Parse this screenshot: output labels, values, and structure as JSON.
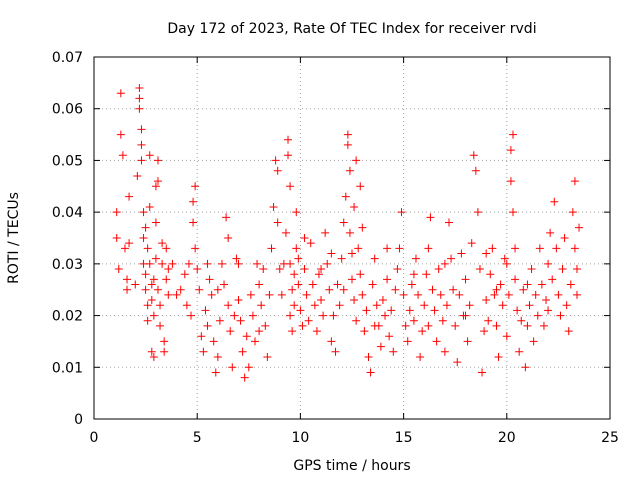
{
  "chart_data": {
    "type": "scatter",
    "title": "Day 172 of 2023, Rate Of TEC Index for receiver rvdi",
    "xlabel": "GPS time / hours",
    "ylabel": "ROTI / TECUs",
    "xlim": [
      0,
      25
    ],
    "ylim": [
      0,
      0.07
    ],
    "xticks": [
      0,
      5,
      10,
      15,
      20,
      25
    ],
    "xtick_labels": [
      "0",
      "5",
      "10",
      "15",
      "20",
      "25"
    ],
    "yticks": [
      0,
      0.01,
      0.02,
      0.03,
      0.04,
      0.05,
      0.06,
      0.07
    ],
    "ytick_labels": [
      "0",
      "0.01",
      "0.02",
      "0.03",
      "0.04",
      "0.05",
      "0.06",
      "0.07"
    ],
    "grid": true,
    "marker": "plus",
    "color": "#ff0000",
    "series": [
      {
        "name": "ROTI",
        "points": [
          [
            1.1,
            0.04
          ],
          [
            1.1,
            0.035
          ],
          [
            1.2,
            0.029
          ],
          [
            1.3,
            0.063
          ],
          [
            1.3,
            0.055
          ],
          [
            1.4,
            0.051
          ],
          [
            1.5,
            0.033
          ],
          [
            1.6,
            0.025
          ],
          [
            1.7,
            0.043
          ],
          [
            1.7,
            0.034
          ],
          [
            2.1,
            0.047
          ],
          [
            2.2,
            0.064
          ],
          [
            2.2,
            0.062
          ],
          [
            2.2,
            0.06
          ],
          [
            2.3,
            0.056
          ],
          [
            2.3,
            0.053
          ],
          [
            2.3,
            0.05
          ],
          [
            2.4,
            0.04
          ],
          [
            2.4,
            0.035
          ],
          [
            2.4,
            0.03
          ],
          [
            2.5,
            0.028
          ],
          [
            2.5,
            0.025
          ],
          [
            2.6,
            0.022
          ],
          [
            2.6,
            0.019
          ],
          [
            2.6,
            0.033
          ],
          [
            2.7,
            0.051
          ],
          [
            2.7,
            0.041
          ],
          [
            2.7,
            0.03
          ],
          [
            2.8,
            0.026
          ],
          [
            2.8,
            0.023
          ],
          [
            2.8,
            0.013
          ],
          [
            2.9,
            0.012
          ],
          [
            2.9,
            0.02
          ],
          [
            2.9,
            0.027
          ],
          [
            3.0,
            0.031
          ],
          [
            3.0,
            0.038
          ],
          [
            3.0,
            0.045
          ],
          [
            3.1,
            0.05
          ],
          [
            3.1,
            0.046
          ],
          [
            3.1,
            0.025
          ],
          [
            3.2,
            0.022
          ],
          [
            3.2,
            0.018
          ],
          [
            3.3,
            0.03
          ],
          [
            3.3,
            0.034
          ],
          [
            3.4,
            0.015
          ],
          [
            3.4,
            0.013
          ],
          [
            3.5,
            0.027
          ],
          [
            3.5,
            0.033
          ],
          [
            3.6,
            0.029
          ],
          [
            3.6,
            0.024
          ],
          [
            4.0,
            0.024
          ],
          [
            4.2,
            0.025
          ],
          [
            4.4,
            0.028
          ],
          [
            4.6,
            0.03
          ],
          [
            4.7,
            0.02
          ],
          [
            4.8,
            0.038
          ],
          [
            4.8,
            0.042
          ],
          [
            4.9,
            0.045
          ],
          [
            4.9,
            0.033
          ],
          [
            5.0,
            0.029
          ],
          [
            5.1,
            0.025
          ],
          [
            5.2,
            0.016
          ],
          [
            5.3,
            0.013
          ],
          [
            5.4,
            0.021
          ],
          [
            5.5,
            0.018
          ],
          [
            5.6,
            0.027
          ],
          [
            5.7,
            0.024
          ],
          [
            5.8,
            0.015
          ],
          [
            5.9,
            0.009
          ],
          [
            6.0,
            0.012
          ],
          [
            6.1,
            0.019
          ],
          [
            6.2,
            0.03
          ],
          [
            6.3,
            0.026
          ],
          [
            6.4,
            0.039
          ],
          [
            6.5,
            0.035
          ],
          [
            6.5,
            0.022
          ],
          [
            6.6,
            0.017
          ],
          [
            6.7,
            0.01
          ],
          [
            6.8,
            0.02
          ],
          [
            6.9,
            0.031
          ],
          [
            7.0,
            0.023
          ],
          [
            7.1,
            0.019
          ],
          [
            7.2,
            0.013
          ],
          [
            7.3,
            0.008
          ],
          [
            7.4,
            0.016
          ],
          [
            7.5,
            0.01
          ],
          [
            7.6,
            0.024
          ],
          [
            7.7,
            0.02
          ],
          [
            7.8,
            0.015
          ],
          [
            7.9,
            0.03
          ],
          [
            8.0,
            0.026
          ],
          [
            8.1,
            0.022
          ],
          [
            8.2,
            0.029
          ],
          [
            8.3,
            0.018
          ],
          [
            8.4,
            0.012
          ],
          [
            8.5,
            0.024
          ],
          [
            8.6,
            0.033
          ],
          [
            8.7,
            0.041
          ],
          [
            8.8,
            0.05
          ],
          [
            8.9,
            0.048
          ],
          [
            8.9,
            0.038
          ],
          [
            9.0,
            0.029
          ],
          [
            9.1,
            0.024
          ],
          [
            9.2,
            0.03
          ],
          [
            9.3,
            0.036
          ],
          [
            9.4,
            0.054
          ],
          [
            9.4,
            0.051
          ],
          [
            9.5,
            0.045
          ],
          [
            9.5,
            0.03
          ],
          [
            9.6,
            0.025
          ],
          [
            9.6,
            0.017
          ],
          [
            9.7,
            0.022
          ],
          [
            9.7,
            0.028
          ],
          [
            9.8,
            0.033
          ],
          [
            9.8,
            0.04
          ],
          [
            9.9,
            0.031
          ],
          [
            9.9,
            0.026
          ],
          [
            10.0,
            0.021
          ],
          [
            10.1,
            0.018
          ],
          [
            10.2,
            0.029
          ],
          [
            10.3,
            0.024
          ],
          [
            10.4,
            0.019
          ],
          [
            10.5,
            0.034
          ],
          [
            10.6,
            0.026
          ],
          [
            10.7,
            0.022
          ],
          [
            10.8,
            0.017
          ],
          [
            10.9,
            0.028
          ],
          [
            11.0,
            0.023
          ],
          [
            11.1,
            0.02
          ],
          [
            11.2,
            0.036
          ],
          [
            11.3,
            0.03
          ],
          [
            11.4,
            0.025
          ],
          [
            11.5,
            0.015
          ],
          [
            11.6,
            0.02
          ],
          [
            11.7,
            0.013
          ],
          [
            11.8,
            0.026
          ],
          [
            11.9,
            0.022
          ],
          [
            12.0,
            0.031
          ],
          [
            12.1,
            0.038
          ],
          [
            12.2,
            0.043
          ],
          [
            12.3,
            0.055
          ],
          [
            12.3,
            0.053
          ],
          [
            12.4,
            0.048
          ],
          [
            12.4,
            0.036
          ],
          [
            12.5,
            0.032
          ],
          [
            12.5,
            0.027
          ],
          [
            12.6,
            0.041
          ],
          [
            12.6,
            0.023
          ],
          [
            12.7,
            0.05
          ],
          [
            12.7,
            0.019
          ],
          [
            12.8,
            0.033
          ],
          [
            12.9,
            0.028
          ],
          [
            13.0,
            0.024
          ],
          [
            13.1,
            0.017
          ],
          [
            13.2,
            0.021
          ],
          [
            13.3,
            0.012
          ],
          [
            13.4,
            0.009
          ],
          [
            13.5,
            0.026
          ],
          [
            13.6,
            0.031
          ],
          [
            13.7,
            0.022
          ],
          [
            13.8,
            0.018
          ],
          [
            13.9,
            0.014
          ],
          [
            14.0,
            0.023
          ],
          [
            14.1,
            0.02
          ],
          [
            14.2,
            0.027
          ],
          [
            14.3,
            0.016
          ],
          [
            14.4,
            0.021
          ],
          [
            14.5,
            0.013
          ],
          [
            14.6,
            0.025
          ],
          [
            14.7,
            0.029
          ],
          [
            14.8,
            0.033
          ],
          [
            14.9,
            0.04
          ],
          [
            15.0,
            0.024
          ],
          [
            15.1,
            0.018
          ],
          [
            15.2,
            0.015
          ],
          [
            15.3,
            0.021
          ],
          [
            15.4,
            0.026
          ],
          [
            15.5,
            0.019
          ],
          [
            15.6,
            0.031
          ],
          [
            15.7,
            0.024
          ],
          [
            15.8,
            0.012
          ],
          [
            15.9,
            0.017
          ],
          [
            16.0,
            0.022
          ],
          [
            16.1,
            0.028
          ],
          [
            16.2,
            0.033
          ],
          [
            16.3,
            0.039
          ],
          [
            16.4,
            0.025
          ],
          [
            16.5,
            0.021
          ],
          [
            16.6,
            0.015
          ],
          [
            16.7,
            0.029
          ],
          [
            16.8,
            0.024
          ],
          [
            16.9,
            0.019
          ],
          [
            17.0,
            0.013
          ],
          [
            17.1,
            0.022
          ],
          [
            17.2,
            0.038
          ],
          [
            17.3,
            0.031
          ],
          [
            17.4,
            0.025
          ],
          [
            17.5,
            0.018
          ],
          [
            17.6,
            0.011
          ],
          [
            17.7,
            0.024
          ],
          [
            17.8,
            0.032
          ],
          [
            17.9,
            0.02
          ],
          [
            18.0,
            0.027
          ],
          [
            18.1,
            0.015
          ],
          [
            18.2,
            0.022
          ],
          [
            18.3,
            0.034
          ],
          [
            18.4,
            0.051
          ],
          [
            18.5,
            0.048
          ],
          [
            18.6,
            0.04
          ],
          [
            18.7,
            0.029
          ],
          [
            18.8,
            0.009
          ],
          [
            18.9,
            0.017
          ],
          [
            19.0,
            0.023
          ],
          [
            19.1,
            0.019
          ],
          [
            19.2,
            0.028
          ],
          [
            19.3,
            0.033
          ],
          [
            19.4,
            0.024
          ],
          [
            19.5,
            0.018
          ],
          [
            19.6,
            0.012
          ],
          [
            19.7,
            0.026
          ],
          [
            19.8,
            0.022
          ],
          [
            19.9,
            0.031
          ],
          [
            20.0,
            0.016
          ],
          [
            20.1,
            0.024
          ],
          [
            20.2,
            0.052
          ],
          [
            20.2,
            0.046
          ],
          [
            20.3,
            0.055
          ],
          [
            20.3,
            0.04
          ],
          [
            20.4,
            0.033
          ],
          [
            20.4,
            0.027
          ],
          [
            20.5,
            0.021
          ],
          [
            20.6,
            0.013
          ],
          [
            20.7,
            0.019
          ],
          [
            20.8,
            0.025
          ],
          [
            20.9,
            0.01
          ],
          [
            21.0,
            0.018
          ],
          [
            21.1,
            0.022
          ],
          [
            21.2,
            0.029
          ],
          [
            21.3,
            0.015
          ],
          [
            21.4,
            0.024
          ],
          [
            21.5,
            0.02
          ],
          [
            21.6,
            0.033
          ],
          [
            21.7,
            0.026
          ],
          [
            21.8,
            0.018
          ],
          [
            21.9,
            0.023
          ],
          [
            22.0,
            0.03
          ],
          [
            22.1,
            0.036
          ],
          [
            22.2,
            0.027
          ],
          [
            22.3,
            0.042
          ],
          [
            22.4,
            0.033
          ],
          [
            22.5,
            0.024
          ],
          [
            22.6,
            0.02
          ],
          [
            22.7,
            0.029
          ],
          [
            22.8,
            0.035
          ],
          [
            22.9,
            0.022
          ],
          [
            23.0,
            0.017
          ],
          [
            23.1,
            0.026
          ],
          [
            23.2,
            0.04
          ],
          [
            23.3,
            0.046
          ],
          [
            23.3,
            0.033
          ],
          [
            23.4,
            0.029
          ],
          [
            23.4,
            0.024
          ],
          [
            23.5,
            0.037
          ],
          [
            9.5,
            0.02
          ],
          [
            10.2,
            0.035
          ],
          [
            11.5,
            0.032
          ],
          [
            12.1,
            0.025
          ],
          [
            13.0,
            0.037
          ],
          [
            13.6,
            0.018
          ],
          [
            14.2,
            0.033
          ],
          [
            15.5,
            0.028
          ],
          [
            16.2,
            0.018
          ],
          [
            17.0,
            0.03
          ],
          [
            18.0,
            0.02
          ],
          [
            19.0,
            0.032
          ],
          [
            19.5,
            0.025
          ],
          [
            20.0,
            0.03
          ],
          [
            21.0,
            0.026
          ],
          [
            22.0,
            0.021
          ],
          [
            6.0,
            0.025
          ],
          [
            7.0,
            0.03
          ],
          [
            8.0,
            0.017
          ],
          [
            5.5,
            0.03
          ],
          [
            4.5,
            0.022
          ],
          [
            3.8,
            0.03
          ],
          [
            2.5,
            0.037
          ],
          [
            2.0,
            0.026
          ],
          [
            1.6,
            0.027
          ],
          [
            12.9,
            0.045
          ],
          [
            11.0,
            0.029
          ]
        ]
      }
    ]
  }
}
